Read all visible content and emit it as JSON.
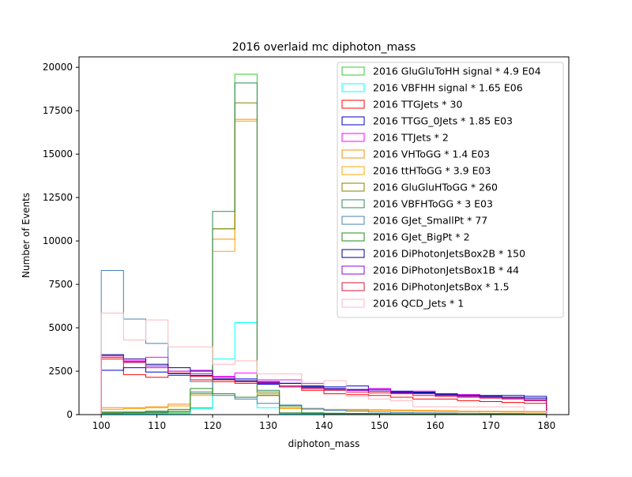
{
  "chart_data": {
    "type": "histogram-step",
    "title": "2016 overlaid mc diphoton_mass",
    "xlabel": "diphoton_mass",
    "ylabel": "Number of Events",
    "xlim": [
      96,
      184
    ],
    "ylim": [
      0,
      20600
    ],
    "xticks": [
      100,
      110,
      120,
      130,
      140,
      150,
      160,
      170,
      180
    ],
    "yticks": [
      0,
      2500,
      5000,
      7500,
      10000,
      12500,
      15000,
      17500,
      20000
    ],
    "bin_edges": [
      100,
      104,
      108,
      112,
      116,
      120,
      124,
      128,
      132,
      136,
      140,
      144,
      148,
      152,
      156,
      160,
      164,
      168,
      172,
      176,
      180
    ],
    "legend_position": "top-right",
    "grid": false,
    "series": [
      {
        "name": "2016 GluGluToHH signal * 4.9 E04",
        "color": "#32cd32",
        "values": [
          50,
          60,
          80,
          100,
          400,
          10700,
          19600,
          1200,
          50,
          30,
          20,
          15,
          10,
          10,
          10,
          10,
          10,
          10,
          10,
          10
        ]
      },
      {
        "name": "2016 VBFHH signal * 1.65 E06",
        "color": "#00ffff",
        "values": [
          20,
          30,
          40,
          50,
          350,
          3200,
          5300,
          400,
          40,
          20,
          15,
          10,
          10,
          10,
          10,
          10,
          10,
          10,
          10,
          10
        ]
      },
      {
        "name": "2016 TTGJets * 30",
        "color": "#ff0000",
        "values": [
          3200,
          2300,
          2150,
          2250,
          2000,
          1900,
          1800,
          1800,
          1600,
          1400,
          1200,
          1150,
          1100,
          1000,
          900,
          900,
          800,
          750,
          700,
          650
        ]
      },
      {
        "name": "2016 TTGG_0Jets * 1.85 E03",
        "color": "#0000cd",
        "values": [
          2550,
          2700,
          2450,
          2350,
          2250,
          2050,
          2050,
          1750,
          1800,
          1650,
          1600,
          1650,
          1450,
          1350,
          1300,
          1200,
          1150,
          1100,
          1100,
          1050
        ]
      },
      {
        "name": "2016 TTJets * 2",
        "color": "#ff00ff",
        "values": [
          3300,
          3100,
          3300,
          2500,
          2550,
          2200,
          2400,
          2000,
          2000,
          1800,
          1500,
          1400,
          1500,
          1300,
          1350,
          1150,
          1150,
          1000,
          1000,
          850
        ]
      },
      {
        "name": "2016 VHToGG * 1.4 E03",
        "color": "#ff8c00",
        "values": [
          400,
          400,
          450,
          600,
          1200,
          10100,
          17000,
          1200,
          400,
          350,
          300,
          300,
          280,
          260,
          240,
          220,
          200,
          190,
          180,
          170
        ]
      },
      {
        "name": "2016 ttHToGG * 3.9 E03",
        "color": "#ffa500",
        "values": [
          300,
          350,
          400,
          500,
          1100,
          9400,
          16900,
          1100,
          350,
          300,
          280,
          260,
          240,
          220,
          200,
          180,
          170,
          160,
          150,
          140
        ]
      },
      {
        "name": "2016 GluGluHToGG * 260",
        "color": "#808000",
        "values": [
          100,
          120,
          150,
          200,
          1200,
          10700,
          17950,
          1300,
          100,
          80,
          60,
          50,
          40,
          35,
          30,
          25,
          25,
          20,
          20,
          20
        ]
      },
      {
        "name": "2016 VBFHToGG * 3 E03",
        "color": "#2e8b57",
        "values": [
          80,
          100,
          120,
          180,
          1300,
          11700,
          19100,
          1400,
          90,
          70,
          50,
          40,
          35,
          30,
          25,
          20,
          20,
          20,
          15,
          15
        ]
      },
      {
        "name": "2016 GJet_SmallPt * 77",
        "color": "#4682b4",
        "values": [
          8300,
          5500,
          4100,
          2500,
          1900,
          1100,
          900,
          650,
          550,
          350,
          250,
          200,
          150,
          120,
          100,
          90,
          80,
          70,
          60,
          50
        ]
      },
      {
        "name": "2016 GJet_BigPt * 2",
        "color": "#228b22",
        "values": [
          150,
          150,
          200,
          300,
          1500,
          1200,
          1000,
          1100,
          500,
          100,
          80,
          70,
          60,
          50,
          40,
          40,
          30,
          30,
          30,
          25
        ]
      },
      {
        "name": "2016 DiPhotonJetsBox2B * 150",
        "color": "#00008b",
        "values": [
          3450,
          3200,
          2900,
          2700,
          2500,
          2050,
          1950,
          1900,
          1800,
          1600,
          1500,
          1450,
          1350,
          1300,
          1250,
          1150,
          1100,
          1050,
          1000,
          950
        ]
      },
      {
        "name": "2016 DiPhotonJetsBox1B * 44",
        "color": "#9400d3",
        "values": [
          3400,
          3050,
          2800,
          2500,
          2350,
          2150,
          1900,
          1850,
          1650,
          1550,
          1450,
          1400,
          1350,
          1250,
          1200,
          1100,
          1050,
          1000,
          950,
          850
        ]
      },
      {
        "name": "2016 DiPhotonJetsBox * 1.5",
        "color": "#dc143c",
        "values": [
          3300,
          3000,
          2700,
          2400,
          2200,
          2000,
          1900,
          1800,
          1600,
          1500,
          1400,
          1300,
          1250,
          1200,
          1100,
          1050,
          1000,
          950,
          900,
          800
        ]
      },
      {
        "name": "2016 QCD_Jets * 1",
        "color": "#ffb6c1",
        "values": [
          5850,
          4300,
          5450,
          3900,
          3900,
          2900,
          3100,
          2350,
          2350,
          1700,
          1950,
          1050,
          900,
          800,
          450,
          450,
          450,
          450,
          450,
          200
        ]
      }
    ]
  }
}
